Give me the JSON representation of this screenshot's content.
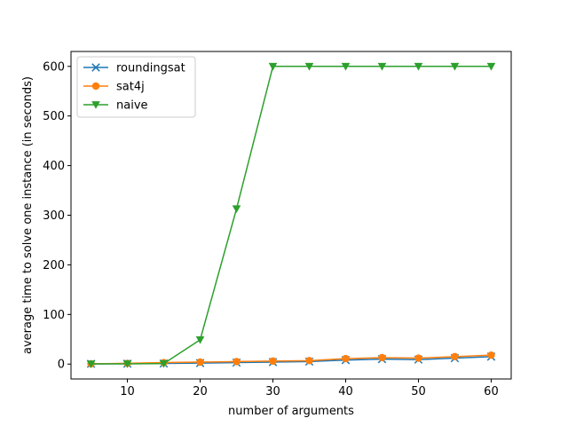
{
  "chart_data": {
    "type": "line",
    "xlabel": "number of arguments",
    "ylabel": "average time to solve one instance (in seconds)",
    "xlim": [
      2.25,
      62.75
    ],
    "ylim": [
      -30,
      630
    ],
    "xticks": [
      10,
      20,
      30,
      40,
      50,
      60
    ],
    "yticks": [
      0,
      100,
      200,
      300,
      400,
      500,
      600
    ],
    "grid": false,
    "legend_position": "top-left",
    "x": [
      5,
      10,
      15,
      20,
      25,
      30,
      35,
      40,
      45,
      50,
      55,
      60
    ],
    "series": [
      {
        "name": "roundingsat",
        "color": "#1f77b4",
        "marker": "x",
        "values": [
          0.5,
          0.8,
          1.2,
          2,
          3,
          4,
          5,
          8,
          10,
          9,
          12,
          15
        ]
      },
      {
        "name": "sat4j",
        "color": "#ff7f0e",
        "marker": "circle",
        "values": [
          0.5,
          1.5,
          3,
          4,
          5,
          6,
          7,
          11,
          13,
          12,
          15,
          18
        ]
      },
      {
        "name": "naive",
        "color": "#2ca02c",
        "marker": "triangle-down",
        "values": [
          0.3,
          0.5,
          1,
          49,
          313,
          600,
          600,
          600,
          600,
          600,
          600,
          600
        ]
      }
    ]
  }
}
